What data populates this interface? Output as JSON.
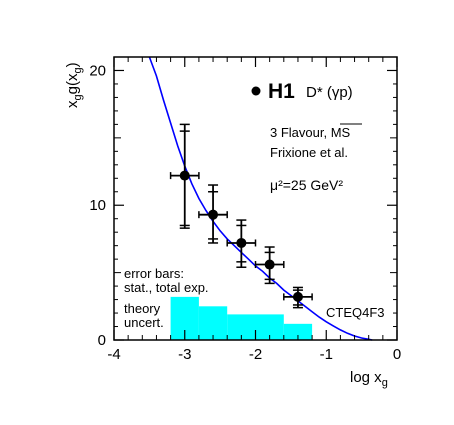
{
  "chart_data": {
    "type": "scatter",
    "xlabel": "log x",
    "xlabel_sub": "g",
    "ylabel": "x g(x )",
    "ylabel_sub1": "g",
    "ylabel_sub2": "g",
    "xlim": [
      -4,
      0
    ],
    "ylim": [
      0,
      21
    ],
    "x_ticks": [
      -4,
      -3,
      -2,
      -1,
      0
    ],
    "x_tick_labels": [
      "-4",
      "-3",
      "-2",
      "-1",
      "0"
    ],
    "y_ticks": [
      0,
      10,
      20
    ],
    "y_tick_labels": [
      "0",
      "10",
      "20"
    ],
    "legend": {
      "marker_label": "H1",
      "process": "D* (γp)"
    },
    "annotations": {
      "line1": "3 Flavour, MS",
      "line2": "Frixione et al.",
      "line3": "μ²=25 GeV²",
      "error_bars_1": "error bars:",
      "error_bars_2": "stat., total exp.",
      "theory_1": "theory",
      "theory_2": "uncert.",
      "pdf_label": "CTEQ4F3"
    },
    "data_points": [
      {
        "x": -3.0,
        "y": 12.2,
        "xerr": 0.2,
        "stat_low": 8.5,
        "stat_high": 15.5,
        "tot_low": 8.3,
        "tot_high": 16.0
      },
      {
        "x": -2.6,
        "y": 9.3,
        "xerr": 0.2,
        "stat_low": 7.5,
        "stat_high": 11.0,
        "tot_low": 7.2,
        "tot_high": 11.5
      },
      {
        "x": -2.2,
        "y": 7.2,
        "xerr": 0.2,
        "stat_low": 5.8,
        "stat_high": 8.5,
        "tot_low": 5.4,
        "tot_high": 8.9
      },
      {
        "x": -1.8,
        "y": 5.6,
        "xerr": 0.2,
        "stat_low": 4.5,
        "stat_high": 6.5,
        "tot_low": 4.2,
        "tot_high": 6.9
      },
      {
        "x": -1.4,
        "y": 3.2,
        "xerr": 0.2,
        "stat_low": 2.6,
        "stat_high": 3.7,
        "tot_low": 2.4,
        "tot_high": 3.9
      }
    ],
    "theory_band": [
      {
        "x0": -3.2,
        "x1": -2.8,
        "y": 3.2
      },
      {
        "x0": -2.8,
        "x1": -2.4,
        "y": 2.5
      },
      {
        "x0": -2.4,
        "x1": -2.0,
        "y": 1.9
      },
      {
        "x0": -2.0,
        "x1": -1.6,
        "y": 1.9
      },
      {
        "x0": -1.6,
        "x1": -1.2,
        "y": 1.2
      }
    ],
    "curve": {
      "name": "CTEQ4F3",
      "color": "#0000ff",
      "points": [
        [
          -3.5,
          21.0
        ],
        [
          -3.4,
          19.6
        ],
        [
          -3.3,
          17.8
        ],
        [
          -3.2,
          16.1
        ],
        [
          -3.1,
          14.4
        ],
        [
          -3.0,
          12.9
        ],
        [
          -2.9,
          11.6
        ],
        [
          -2.8,
          10.5
        ],
        [
          -2.7,
          9.6
        ],
        [
          -2.6,
          8.8
        ],
        [
          -2.5,
          8.1
        ],
        [
          -2.4,
          7.5
        ],
        [
          -2.3,
          7.0
        ],
        [
          -2.2,
          6.5
        ],
        [
          -2.1,
          6.0
        ],
        [
          -2.0,
          5.5
        ],
        [
          -1.9,
          5.1
        ],
        [
          -1.8,
          4.6
        ],
        [
          -1.7,
          4.2
        ],
        [
          -1.6,
          3.7
        ],
        [
          -1.5,
          3.3
        ],
        [
          -1.4,
          2.9
        ],
        [
          -1.3,
          2.5
        ],
        [
          -1.2,
          2.1
        ],
        [
          -1.1,
          1.7
        ],
        [
          -1.0,
          1.35
        ],
        [
          -0.9,
          1.05
        ],
        [
          -0.8,
          0.75
        ],
        [
          -0.7,
          0.5
        ],
        [
          -0.6,
          0.3
        ],
        [
          -0.5,
          0.15
        ],
        [
          -0.4,
          0.05
        ],
        [
          -0.35,
          0.0
        ]
      ]
    },
    "band_color": "#00ffff",
    "marker_color": "#000000"
  }
}
